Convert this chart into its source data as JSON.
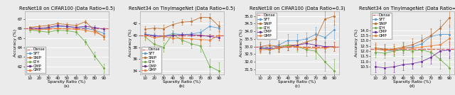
{
  "subplots": [
    {
      "title": "ResNet18 on CIFAR100 (Data Ratio=0.5)",
      "xlabel": "Sparsity Ratio (%)",
      "ylabel": "Accuracy (%)",
      "label": "(a)",
      "xlim": [
        5,
        95
      ],
      "xticks": [
        10,
        20,
        30,
        40,
        50,
        60,
        70,
        80,
        90
      ],
      "ylim": [
        61.2,
        67.8
      ],
      "yticks": [
        62.0,
        63.0,
        64.0,
        65.0,
        66.0,
        67.0
      ],
      "dense_y": 66.0,
      "legend_loc": "lower left",
      "series": [
        {
          "name": "Dense",
          "color": "#e05c5c",
          "x": [],
          "y": [],
          "yerr": []
        },
        {
          "name": "SFT",
          "color": "#5b9bd5",
          "x": [
            10,
            20,
            30,
            40,
            50,
            60,
            70,
            80,
            90
          ],
          "y": [
            65.95,
            65.92,
            66.05,
            66.22,
            66.18,
            66.12,
            66.05,
            65.82,
            65.5
          ],
          "yerr": [
            0.12,
            0.12,
            0.14,
            0.18,
            0.15,
            0.15,
            0.15,
            0.2,
            0.25
          ]
        },
        {
          "name": "SNIP",
          "color": "#c07030",
          "x": [
            10,
            20,
            30,
            40,
            50,
            60,
            70,
            80,
            90
          ],
          "y": [
            66.12,
            66.22,
            66.32,
            66.52,
            66.42,
            66.32,
            66.72,
            65.82,
            65.12
          ],
          "yerr": [
            0.15,
            0.15,
            0.18,
            0.2,
            0.2,
            0.2,
            0.2,
            0.3,
            0.3
          ]
        },
        {
          "name": "LTH",
          "color": "#70ad47",
          "x": [
            10,
            20,
            30,
            40,
            50,
            60,
            70,
            80,
            90
          ],
          "y": [
            65.85,
            65.72,
            65.62,
            65.82,
            65.77,
            65.62,
            64.62,
            63.12,
            61.82
          ],
          "yerr": [
            0.18,
            0.18,
            0.2,
            0.25,
            0.25,
            0.25,
            0.3,
            0.4,
            0.5
          ]
        },
        {
          "name": "OMP",
          "color": "#7030a0",
          "x": [
            10,
            20,
            30,
            40,
            50,
            60,
            70,
            80,
            90
          ],
          "y": [
            66.05,
            66.02,
            66.12,
            66.32,
            66.22,
            66.12,
            66.22,
            66.12,
            65.92
          ],
          "yerr": [
            0.12,
            0.12,
            0.15,
            0.18,
            0.15,
            0.18,
            0.18,
            0.18,
            0.18
          ]
        },
        {
          "name": "GMP",
          "color": "#ed7d31",
          "x": [
            10,
            20,
            30,
            40,
            50,
            60,
            70,
            80,
            90
          ],
          "y": [
            65.92,
            65.87,
            65.92,
            66.02,
            65.97,
            65.92,
            65.82,
            65.62,
            65.22
          ],
          "yerr": [
            0.12,
            0.12,
            0.14,
            0.15,
            0.15,
            0.18,
            0.18,
            0.25,
            0.3
          ]
        }
      ]
    },
    {
      "title": "ResNet34 on TinyImageNet (Data Ratio=0.5)",
      "xlabel": "Sparsity Ratio (%)",
      "ylabel": "Accuracy (%)",
      "label": "(b)",
      "xlim": [
        5,
        95
      ],
      "xticks": [
        10,
        20,
        30,
        40,
        50,
        60,
        70,
        80,
        90
      ],
      "ylim": [
        33.5,
        44.0
      ],
      "yticks": [
        34.0,
        36.0,
        38.0,
        40.0,
        42.0
      ],
      "dense_y": 40.0,
      "legend_loc": "lower left",
      "series": [
        {
          "name": "Dense",
          "color": "#e05c5c",
          "x": [],
          "y": [],
          "yerr": []
        },
        {
          "name": "SFT",
          "color": "#5b9bd5",
          "x": [
            10,
            20,
            30,
            40,
            50,
            60,
            70,
            80,
            90
          ],
          "y": [
            40.2,
            40.0,
            39.8,
            40.3,
            40.1,
            40.2,
            40.5,
            41.5,
            41.2
          ],
          "yerr": [
            0.4,
            0.4,
            0.5,
            0.5,
            0.4,
            0.4,
            0.5,
            0.6,
            0.6
          ]
        },
        {
          "name": "SNIP",
          "color": "#c07030",
          "x": [
            10,
            20,
            30,
            40,
            50,
            60,
            70,
            80,
            90
          ],
          "y": [
            41.0,
            41.2,
            41.1,
            41.8,
            42.2,
            42.3,
            43.0,
            43.0,
            41.5
          ],
          "yerr": [
            0.5,
            0.4,
            0.6,
            0.5,
            0.5,
            0.6,
            0.6,
            0.7,
            0.8
          ]
        },
        {
          "name": "LTH",
          "color": "#70ad47",
          "x": [
            10,
            20,
            30,
            40,
            50,
            60,
            70,
            80,
            90
          ],
          "y": [
            39.8,
            38.5,
            38.0,
            40.2,
            39.2,
            38.6,
            38.2,
            34.8,
            34.0
          ],
          "yerr": [
            0.6,
            0.7,
            0.8,
            0.6,
            0.7,
            0.8,
            0.9,
            1.2,
            1.5
          ]
        },
        {
          "name": "OMP",
          "color": "#7030a0",
          "x": [
            10,
            20,
            30,
            40,
            50,
            60,
            70,
            80,
            90
          ],
          "y": [
            40.1,
            39.9,
            39.8,
            40.0,
            40.1,
            40.1,
            40.0,
            39.8,
            39.6
          ],
          "yerr": [
            0.3,
            0.3,
            0.3,
            0.3,
            0.3,
            0.3,
            0.3,
            0.4,
            0.4
          ]
        },
        {
          "name": "GMP",
          "color": "#ed7d31",
          "x": [
            10,
            20,
            30,
            40,
            50,
            60,
            70,
            80,
            90
          ],
          "y": [
            40.0,
            39.6,
            39.8,
            39.5,
            39.5,
            39.4,
            39.3,
            39.2,
            40.0
          ],
          "yerr": [
            0.6,
            0.8,
            0.6,
            0.7,
            0.7,
            0.8,
            0.9,
            1.0,
            0.8
          ]
        }
      ]
    },
    {
      "title": "ResNet18 on CIFAR100 (Data Ratio=0.3)",
      "xlabel": "Sparsity Ratio (%)",
      "ylabel": "Accuracy (%)",
      "label": "(c)",
      "xlim": [
        5,
        95
      ],
      "xticks": [
        10,
        20,
        30,
        40,
        50,
        60,
        70,
        80,
        90
      ],
      "ylim": [
        31.2,
        35.3
      ],
      "yticks": [
        31.5,
        32.0,
        32.5,
        33.0,
        33.5,
        34.0,
        34.5,
        35.0
      ],
      "dense_y": 33.0,
      "legend_loc": "upper left",
      "series": [
        {
          "name": "Dense",
          "color": "#e05c5c",
          "x": [],
          "y": [],
          "yerr": []
        },
        {
          "name": "SFT",
          "color": "#5b9bd5",
          "x": [
            10,
            20,
            30,
            40,
            50,
            60,
            70,
            80,
            90
          ],
          "y": [
            33.0,
            32.9,
            33.1,
            33.4,
            33.4,
            33.5,
            33.8,
            33.6,
            34.1
          ],
          "yerr": [
            0.3,
            0.3,
            0.3,
            0.4,
            0.4,
            0.4,
            0.5,
            0.6,
            0.6
          ]
        },
        {
          "name": "SNIP",
          "color": "#c07030",
          "x": [
            10,
            20,
            30,
            40,
            50,
            60,
            70,
            80,
            90
          ],
          "y": [
            33.0,
            33.1,
            33.0,
            33.1,
            33.1,
            33.3,
            33.5,
            34.8,
            35.0
          ],
          "yerr": [
            0.3,
            0.3,
            0.3,
            0.3,
            0.3,
            0.3,
            0.4,
            0.5,
            0.6
          ]
        },
        {
          "name": "LTH",
          "color": "#70ad47",
          "x": [
            10,
            20,
            30,
            40,
            50,
            60,
            70,
            80,
            90
          ],
          "y": [
            32.9,
            32.8,
            32.9,
            33.1,
            33.0,
            32.8,
            32.7,
            32.0,
            31.4
          ],
          "yerr": [
            0.3,
            0.3,
            0.3,
            0.35,
            0.35,
            0.4,
            0.5,
            0.6,
            0.8
          ]
        },
        {
          "name": "OMP",
          "color": "#7030a0",
          "x": [
            10,
            20,
            30,
            40,
            50,
            60,
            70,
            80,
            90
          ],
          "y": [
            32.9,
            32.85,
            32.9,
            33.0,
            33.1,
            33.2,
            33.1,
            33.0,
            33.0
          ],
          "yerr": [
            0.25,
            0.25,
            0.25,
            0.25,
            0.25,
            0.3,
            0.3,
            0.3,
            0.3
          ]
        },
        {
          "name": "GMP",
          "color": "#ed7d31",
          "x": [
            10,
            20,
            30,
            40,
            50,
            60,
            70,
            80,
            90
          ],
          "y": [
            32.8,
            32.8,
            32.9,
            33.0,
            33.0,
            32.9,
            32.9,
            32.9,
            33.0
          ],
          "yerr": [
            0.25,
            0.25,
            0.25,
            0.25,
            0.25,
            0.25,
            0.3,
            0.3,
            0.3
          ]
        }
      ]
    },
    {
      "title": "ResNet34 on TinyImageNet (Data Ratio=0.3)",
      "xlabel": "Sparsity Ratio (%)",
      "ylabel": "Accuracy (%)",
      "label": "(d)",
      "xlim": [
        5,
        95
      ],
      "xticks": [
        10,
        20,
        30,
        40,
        50,
        60,
        70,
        80,
        90
      ],
      "ylim": [
        9.8,
        15.8
      ],
      "yticks": [
        10.5,
        11.0,
        11.5,
        12.0,
        12.5,
        13.0,
        13.5,
        14.0
      ],
      "dense_y": 12.2,
      "legend_loc": "upper left",
      "series": [
        {
          "name": "Dense",
          "color": "#e05c5c",
          "x": [],
          "y": [],
          "yerr": []
        },
        {
          "name": "SFT",
          "color": "#5b9bd5",
          "x": [
            10,
            20,
            30,
            40,
            50,
            60,
            70,
            80,
            90
          ],
          "y": [
            12.2,
            12.1,
            12.0,
            12.3,
            12.4,
            12.7,
            13.4,
            13.6,
            13.6
          ],
          "yerr": [
            0.5,
            0.5,
            0.5,
            0.5,
            0.5,
            0.6,
            0.7,
            0.8,
            0.9
          ]
        },
        {
          "name": "SNIP",
          "color": "#c07030",
          "x": [
            10,
            20,
            30,
            40,
            50,
            60,
            70,
            80,
            90
          ],
          "y": [
            12.3,
            12.2,
            12.2,
            12.4,
            12.6,
            13.0,
            13.5,
            14.2,
            15.2
          ],
          "yerr": [
            0.5,
            0.5,
            0.5,
            0.5,
            0.6,
            0.6,
            0.7,
            0.8,
            0.9
          ]
        },
        {
          "name": "LTH",
          "color": "#70ad47",
          "x": [
            10,
            20,
            30,
            40,
            50,
            60,
            70,
            80,
            90
          ],
          "y": [
            11.9,
            11.8,
            12.0,
            12.1,
            12.0,
            12.1,
            11.9,
            11.2,
            10.4
          ],
          "yerr": [
            0.5,
            0.5,
            0.5,
            0.5,
            0.6,
            0.6,
            0.7,
            0.9,
            1.1
          ]
        },
        {
          "name": "OMP",
          "color": "#7030a0",
          "x": [
            10,
            20,
            30,
            40,
            50,
            60,
            70,
            80,
            90
          ],
          "y": [
            10.5,
            10.4,
            10.5,
            10.7,
            10.8,
            11.0,
            11.4,
            12.0,
            12.1
          ],
          "yerr": [
            0.5,
            0.5,
            0.5,
            0.5,
            0.5,
            0.5,
            0.6,
            0.7,
            0.8
          ]
        },
        {
          "name": "GMP",
          "color": "#ed7d31",
          "x": [
            10,
            20,
            30,
            40,
            50,
            60,
            70,
            80,
            90
          ],
          "y": [
            12.2,
            12.1,
            12.1,
            12.3,
            12.3,
            12.4,
            12.5,
            12.6,
            13.2
          ],
          "yerr": [
            0.4,
            0.4,
            0.4,
            0.4,
            0.4,
            0.5,
            0.5,
            0.6,
            0.7
          ]
        }
      ]
    }
  ],
  "legend_names": [
    "Dense",
    "SFT",
    "SNIP",
    "LTH",
    "OMP",
    "GMP"
  ],
  "legend_colors": [
    "#e05c5c",
    "#5b9bd5",
    "#c07030",
    "#70ad47",
    "#7030a0",
    "#ed7d31"
  ],
  "bg_color": "#ebebeb",
  "grid_color": "white",
  "title_fontsize": 4.8,
  "label_fontsize": 4.2,
  "tick_fontsize": 4.0,
  "legend_fontsize": 3.8
}
